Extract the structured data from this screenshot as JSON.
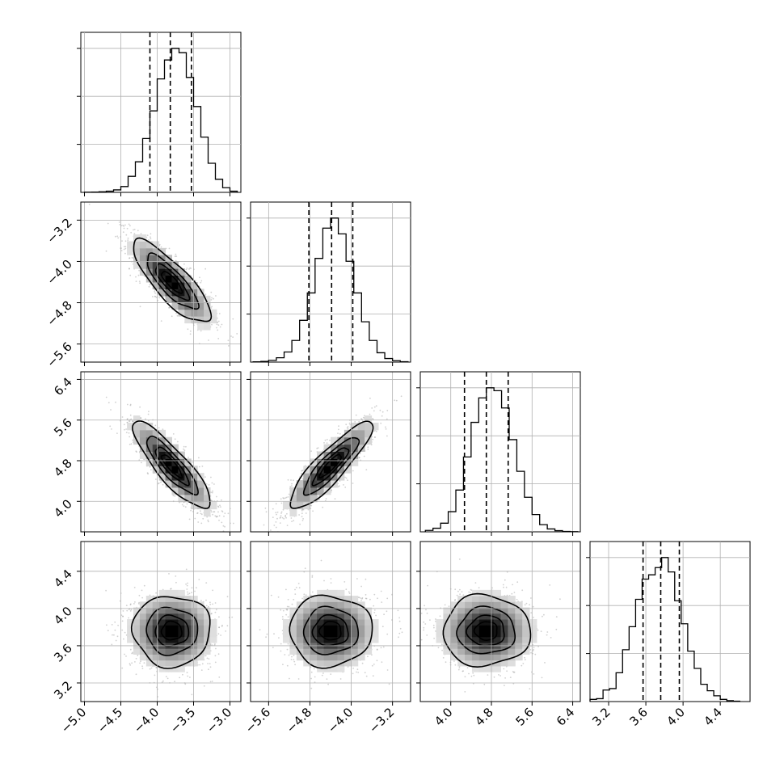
{
  "chart_data": {
    "type": "corner",
    "grid": true,
    "title": "",
    "parameters": [
      {
        "ticks": [
          "−5.0",
          "−4.5",
          "−4.0",
          "−3.5",
          "−3.0"
        ],
        "range": [
          -5.05,
          -2.85
        ],
        "mean": -3.8,
        "sd": 0.28,
        "quantiles": [
          -4.1,
          -3.82,
          -3.53
        ]
      },
      {
        "ticks": [
          "−5.6",
          "−4.8",
          "−4.0",
          "−3.2"
        ],
        "range": [
          -5.95,
          -2.85
        ],
        "mean": -4.4,
        "sd": 0.42,
        "quantiles": [
          -4.82,
          -4.38,
          -3.97
        ]
      },
      {
        "ticks": [
          "4.0",
          "4.8",
          "5.6",
          "6.4"
        ],
        "range": [
          3.4,
          6.55
        ],
        "mean": 4.7,
        "sd": 0.45,
        "quantiles": [
          4.27,
          4.7,
          5.13
        ]
      },
      {
        "ticks": [
          "3.2",
          "3.6",
          "4.0",
          "4.4"
        ],
        "range": [
          3.0,
          4.72
        ],
        "mean": 3.76,
        "sd": 0.2,
        "quantiles": [
          3.57,
          3.76,
          3.96
        ]
      }
    ],
    "histograms": [
      {
        "param": 0,
        "bin_edges": [
          -5.0,
          -4.9,
          -4.8,
          -4.7,
          -4.6,
          -4.5,
          -4.4,
          -4.3,
          -4.2,
          -4.1,
          -4.0,
          -3.9,
          -3.8,
          -3.7,
          -3.6,
          -3.5,
          -3.4,
          -3.3,
          -3.2,
          -3.1,
          -3.0,
          -2.9
        ],
        "counts": [
          1,
          2,
          4,
          8,
          17,
          40,
          110,
          210,
          370,
          560,
          780,
          910,
          990,
          960,
          790,
          590,
          380,
          200,
          90,
          32,
          8
        ]
      },
      {
        "param": 1,
        "bin_edges": [
          -5.9,
          -5.75,
          -5.6,
          -5.45,
          -5.3,
          -5.15,
          -5.0,
          -4.85,
          -4.7,
          -4.55,
          -4.4,
          -4.25,
          -4.1,
          -3.95,
          -3.8,
          -3.65,
          -3.5,
          -3.35,
          -3.2,
          -3.05,
          -2.9
        ],
        "counts": [
          2,
          5,
          12,
          30,
          70,
          150,
          290,
          480,
          720,
          930,
          1000,
          890,
          700,
          480,
          280,
          150,
          65,
          25,
          10,
          3
        ]
      },
      {
        "param": 2,
        "bin_edges": [
          3.5,
          3.65,
          3.8,
          3.95,
          4.1,
          4.25,
          4.4,
          4.55,
          4.7,
          4.85,
          5.0,
          5.15,
          5.3,
          5.45,
          5.6,
          5.75,
          5.9,
          6.05,
          6.2,
          6.35,
          6.5
        ],
        "counts": [
          10,
          25,
          60,
          140,
          290,
          520,
          760,
          930,
          1000,
          980,
          860,
          640,
          420,
          240,
          120,
          50,
          20,
          8,
          3,
          1
        ]
      },
      {
        "param": 3,
        "bin_edges": [
          3.0,
          3.07,
          3.14,
          3.21,
          3.28,
          3.35,
          3.42,
          3.49,
          3.56,
          3.63,
          3.7,
          3.77,
          3.84,
          3.91,
          3.98,
          4.05,
          4.12,
          4.19,
          4.26,
          4.33,
          4.4,
          4.47,
          4.54,
          4.61
        ],
        "counts": [
          15,
          20,
          80,
          90,
          200,
          360,
          520,
          710,
          850,
          880,
          930,
          1000,
          900,
          700,
          540,
          350,
          230,
          120,
          75,
          40,
          15,
          6,
          3
        ]
      }
    ],
    "pairs": [
      {
        "x_param": 0,
        "y_param": 1,
        "correlation": -0.82
      },
      {
        "x_param": 0,
        "y_param": 2,
        "correlation": -0.86
      },
      {
        "x_param": 1,
        "y_param": 2,
        "correlation": 0.88
      },
      {
        "x_param": 0,
        "y_param": 3,
        "correlation": 0.0
      },
      {
        "x_param": 1,
        "y_param": 3,
        "correlation": 0.0
      },
      {
        "x_param": 2,
        "y_param": 3,
        "correlation": 0.0
      }
    ],
    "contour_levels_sigma": [
      0.5,
      1.0,
      1.5,
      2.0
    ]
  }
}
